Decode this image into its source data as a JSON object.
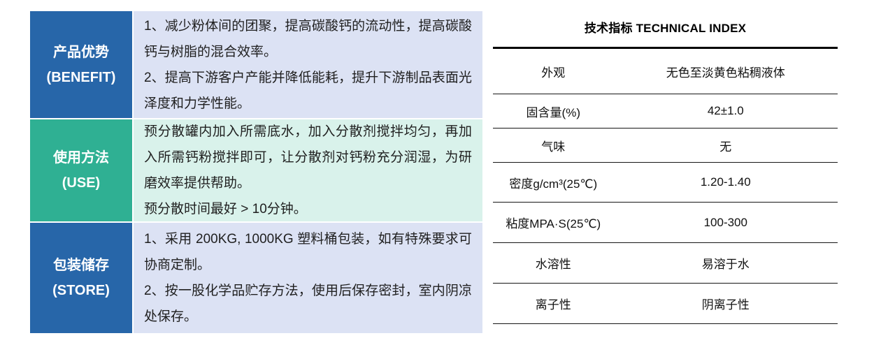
{
  "left_table": {
    "rows": [
      {
        "header_cn": "产品优势",
        "header_en": "(BENEFIT)",
        "paragraphs": [
          "1、减少粉体间的团聚，提高碳酸钙的流动性，提高碳酸钙与树脂的混合效率。",
          "2、提高下游客户产能并降低能耗，提升下游制品表面光泽度和力学性能。"
        ]
      },
      {
        "header_cn": "使用方法",
        "header_en": "(USE)",
        "paragraphs": [
          "预分散罐内加入所需底水，加入分散剂搅拌均匀，再加入所需钙粉搅拌即可，让分散剂对钙粉充分润湿，为研磨效率提供帮助。",
          "预分散时间最好 > 10分钟。"
        ]
      },
      {
        "header_cn": "包装储存",
        "header_en": "(STORE)",
        "paragraphs": [
          "1、采用 200KG, 1000KG 塑料桶包装，如有特殊要求可协商定制。",
          "2、按一股化学品贮存方法，使用后保存密封，室内阴凉处保存。"
        ]
      }
    ]
  },
  "right_table": {
    "title": "技术指标 TECHNICAL INDEX",
    "rows": [
      {
        "label": "外观",
        "value": "无色至淡黄色粘稠液体"
      },
      {
        "label": "固含量(%)",
        "value": "42±1.0"
      },
      {
        "label": "气味",
        "value": "无"
      },
      {
        "label": "密度g/cm³(25℃)",
        "value": "1.20-1.40"
      },
      {
        "label": "粘度MPA·S(25℃)",
        "value": "100-300"
      },
      {
        "label": "水溶性",
        "value": "易溶于水"
      },
      {
        "label": "离子性",
        "value": "阴离子性"
      }
    ]
  },
  "colors": {
    "header_blue": "#2766a9",
    "header_teal": "#2fb093",
    "content_lavender": "#dce2f4",
    "content_mint": "#d9f2eb",
    "line_black": "#000000"
  }
}
